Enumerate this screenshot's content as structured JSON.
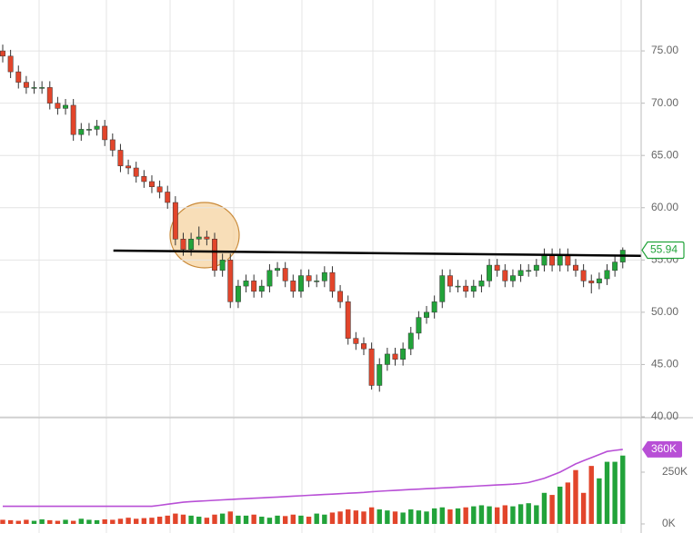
{
  "chart_data": {
    "type": "candlestick",
    "open": [
      75,
      74.5,
      73,
      72,
      71.5,
      71.5,
      71.5,
      70,
      69.5,
      69.8,
      67,
      67.5,
      67.5,
      67.8,
      66.5,
      65.5,
      64,
      63.8,
      63,
      62.5,
      62,
      61.5,
      60.5,
      57,
      56,
      57,
      57.2,
      57,
      54,
      55,
      51,
      52.5,
      53,
      52,
      52.5,
      54,
      54.2,
      53,
      52,
      53.5,
      53,
      53,
      53.8,
      52,
      51,
      47.5,
      47,
      46.5,
      43,
      45,
      46,
      45.5,
      46.5,
      48,
      49.5,
      50,
      51,
      53.5,
      52.5,
      52.5,
      52,
      52.5,
      53,
      54.5,
      54,
      53,
      53.5,
      54,
      54,
      54.5,
      55.5,
      54.5,
      55.5,
      54.5,
      54,
      53,
      52.8,
      53.2,
      54,
      54.8
    ],
    "high": [
      75.6,
      75.1,
      73.6,
      72.6,
      72.1,
      72.1,
      72.1,
      70.6,
      70.4,
      70.4,
      68.1,
      68.1,
      68.4,
      68.4,
      67.1,
      66.1,
      64.6,
      64.4,
      63.6,
      63.1,
      62.6,
      62.1,
      61.1,
      57.6,
      57.6,
      58.2,
      57.8,
      57.6,
      55.6,
      55.6,
      53.1,
      53.6,
      53.6,
      53.1,
      54.6,
      54.8,
      54.8,
      53.6,
      54.1,
      54.1,
      53.6,
      54.4,
      54.4,
      52.6,
      51.6,
      48.1,
      47.6,
      47.1,
      45.6,
      46.6,
      46.6,
      47.1,
      48.6,
      50.1,
      50.6,
      51.6,
      54.1,
      54.1,
      53.1,
      53.1,
      53.1,
      53.6,
      55.1,
      55.1,
      54.6,
      54.1,
      54.6,
      54.6,
      55.1,
      56.1,
      56.1,
      56.1,
      56.1,
      55.1,
      54.6,
      53.6,
      53.8,
      54.6,
      55.4,
      56.2
    ],
    "low": [
      73.9,
      72.4,
      71.4,
      70.9,
      70.9,
      70.9,
      69.4,
      68.9,
      68.9,
      66.4,
      66.4,
      66.9,
      66.9,
      65.9,
      64.9,
      63.4,
      63.2,
      62.4,
      61.9,
      61.4,
      60.9,
      59.9,
      56.4,
      55.4,
      55.4,
      56.4,
      56.4,
      53.4,
      53.4,
      50.4,
      50.4,
      51.9,
      51.4,
      51.4,
      51.9,
      53.4,
      52.4,
      51.4,
      51.4,
      52.4,
      52.4,
      52.4,
      51.4,
      50.4,
      46.9,
      46.4,
      45.9,
      42.6,
      42.4,
      44.4,
      44.9,
      44.9,
      45.9,
      47.4,
      48.9,
      49.4,
      50.4,
      51.9,
      51.9,
      51.4,
      51.4,
      51.9,
      52.4,
      53.4,
      52.4,
      52.4,
      52.9,
      53.4,
      53.4,
      53.9,
      53.9,
      53.9,
      53.9,
      53.4,
      52.4,
      51.8,
      52.2,
      52.6,
      53.4,
      54.2
    ],
    "close": [
      74.5,
      73,
      72,
      71.5,
      71.5,
      71.5,
      70,
      69.5,
      69.8,
      67,
      67.5,
      67.5,
      67.8,
      66.5,
      65.5,
      64,
      63.8,
      63,
      62.5,
      62,
      61.5,
      60.5,
      57,
      56,
      57,
      57.2,
      57,
      54,
      55,
      51,
      52.5,
      53,
      52,
      52.5,
      54,
      54.2,
      53,
      52,
      53.5,
      53,
      53,
      53.8,
      52,
      51,
      47.5,
      47,
      46.5,
      43,
      45,
      46,
      45.5,
      46.5,
      48,
      49.5,
      50,
      51,
      53.5,
      52.5,
      52.5,
      52,
      52.5,
      53,
      54.5,
      54,
      53,
      53.5,
      54,
      54,
      54.5,
      55.5,
      54.5,
      55.5,
      54.5,
      54,
      53,
      52.8,
      53.2,
      54,
      54.8,
      55.94
    ],
    "up_color": "#22a33a",
    "down_color": "#e2452b",
    "ylim": [
      40,
      79.87
    ],
    "yticks": [
      {
        "value": 40,
        "label": "40.00"
      },
      {
        "value": 45,
        "label": "45.00"
      },
      {
        "value": 50,
        "label": "50.00"
      },
      {
        "value": 55,
        "label": "55.00"
      },
      {
        "value": 60,
        "label": "60.00"
      },
      {
        "value": 65,
        "label": "65.00"
      },
      {
        "value": 70,
        "label": "70.00"
      },
      {
        "value": 75,
        "label": "75.00"
      }
    ],
    "grid": true,
    "trendline": {
      "x": [
        14.1,
        81.3
      ],
      "y": [
        55.9,
        55.4
      ],
      "color": "#000000"
    },
    "volume": {
      "values": [
        20000,
        18000,
        15000,
        20000,
        15000,
        22000,
        18000,
        15000,
        20000,
        15000,
        25000,
        20000,
        18000,
        22000,
        20000,
        25000,
        30000,
        25000,
        28000,
        30000,
        35000,
        40000,
        50000,
        45000,
        40000,
        35000,
        30000,
        45000,
        50000,
        60000,
        40000,
        40000,
        45000,
        35000,
        30000,
        40000,
        38000,
        45000,
        40000,
        35000,
        50000,
        45000,
        55000,
        60000,
        70000,
        65000,
        60000,
        80000,
        70000,
        65000,
        60000,
        55000,
        70000,
        65000,
        60000,
        75000,
        80000,
        70000,
        75000,
        80000,
        85000,
        90000,
        85000,
        80000,
        90000,
        85000,
        95000,
        100000,
        90000,
        150000,
        140000,
        180000,
        200000,
        260000,
        150000,
        280000,
        220000,
        300000,
        300000,
        330000
      ],
      "ylim": [
        0,
        513000
      ],
      "yticks": [
        {
          "value": 0,
          "label": "0K"
        },
        {
          "value": 250000,
          "label": "250K"
        }
      ]
    },
    "volume_avg": {
      "color": "#b84fd6",
      "values": [
        85000,
        85000,
        85000,
        85000,
        85000,
        85000,
        85000,
        85000,
        85000,
        85000,
        85000,
        85000,
        85000,
        85000,
        85000,
        85000,
        85000,
        85000,
        85000,
        85000,
        90000,
        95000,
        100000,
        105000,
        108000,
        110000,
        112000,
        114000,
        116000,
        118000,
        120000,
        122000,
        124000,
        126000,
        128000,
        130000,
        132000,
        134000,
        136000,
        138000,
        140000,
        142000,
        144000,
        146000,
        148000,
        150000,
        152000,
        155000,
        158000,
        160000,
        162000,
        164000,
        166000,
        168000,
        170000,
        172000,
        174000,
        176000,
        178000,
        180000,
        182000,
        184000,
        186000,
        188000,
        190000,
        192000,
        195000,
        200000,
        210000,
        220000,
        235000,
        250000,
        270000,
        290000,
        305000,
        320000,
        335000,
        350000,
        355000,
        360000
      ],
      "current_label": "360K"
    }
  }
}
